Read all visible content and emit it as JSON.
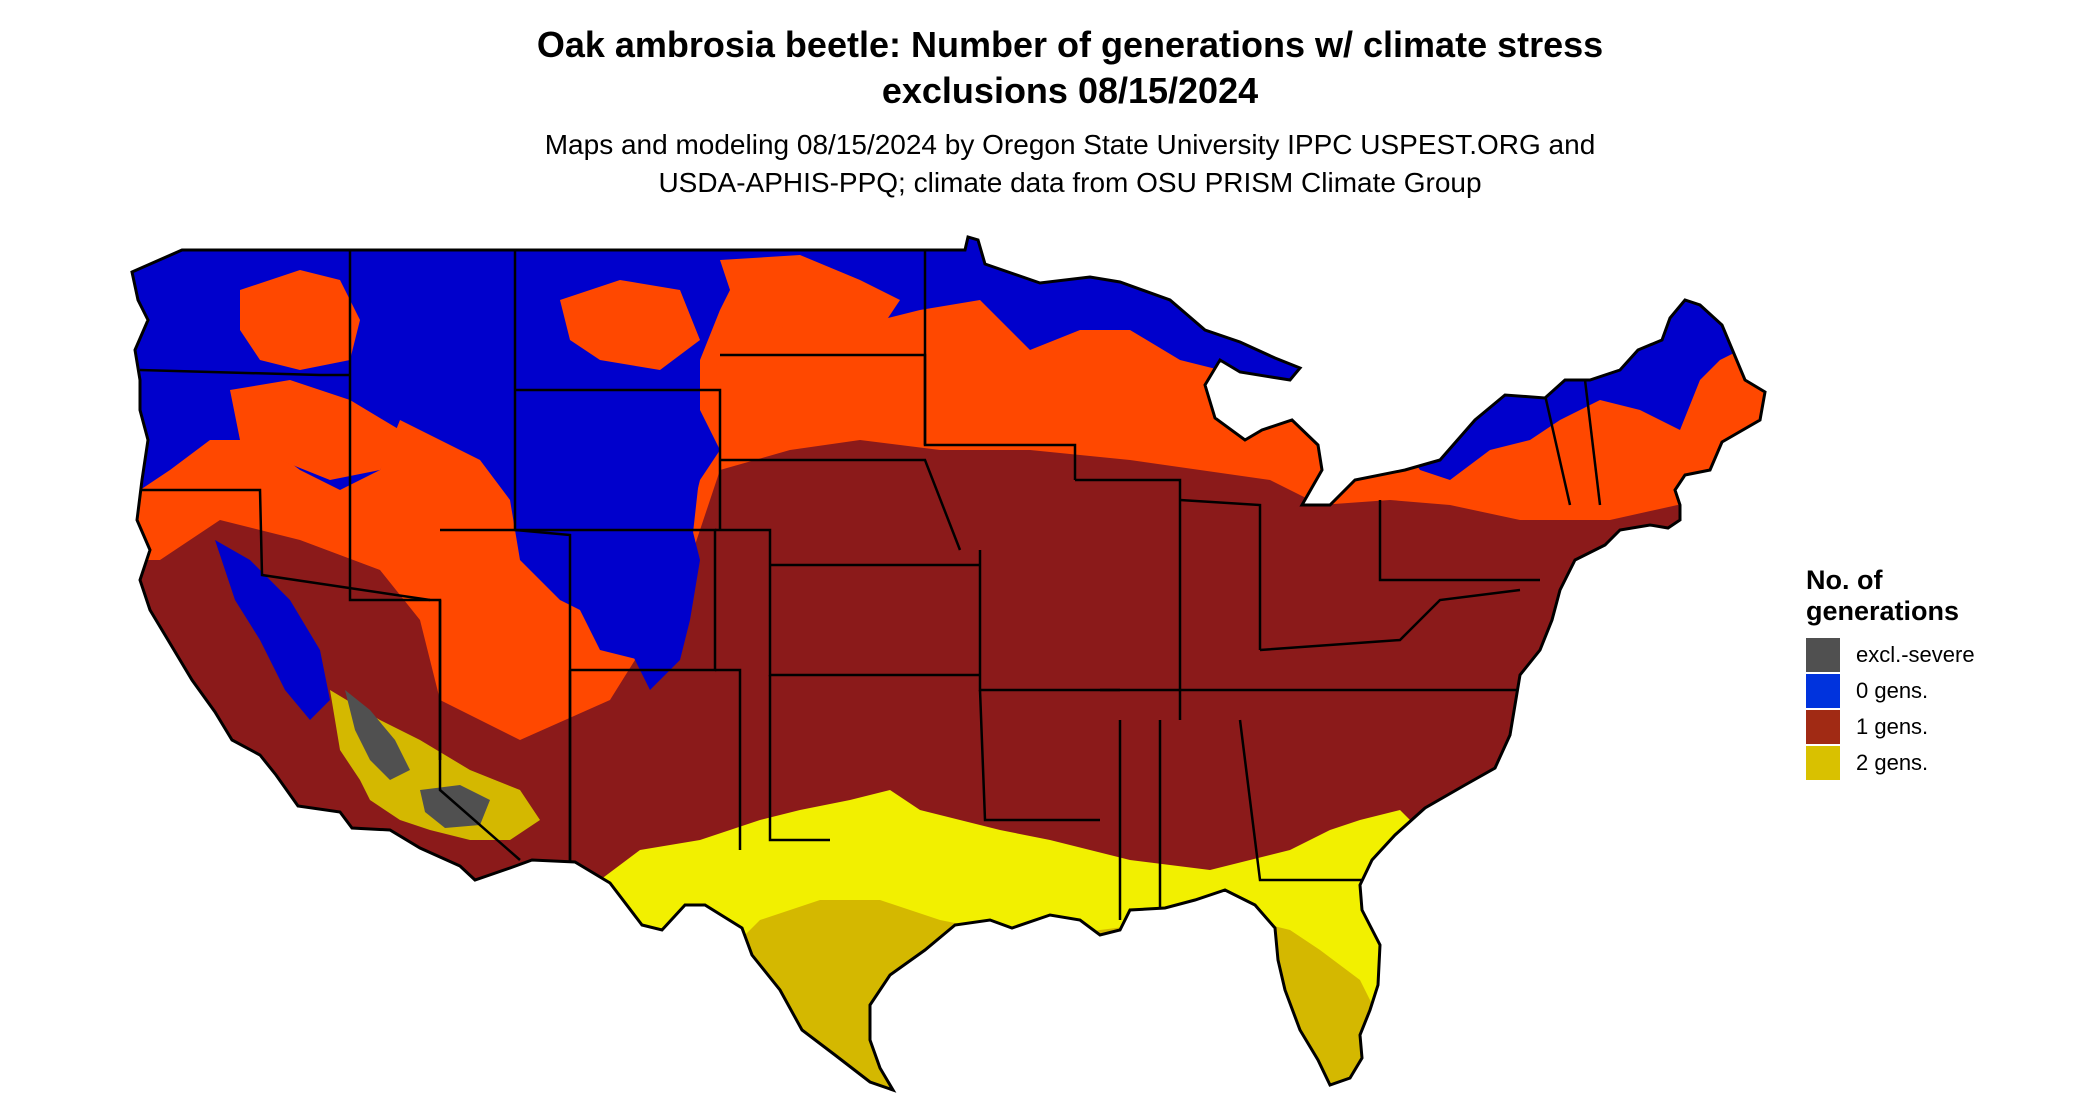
{
  "title": {
    "line1": "Oak ambrosia beetle: Number of generations w/ climate stress",
    "line2": "exclusions 08/15/2024"
  },
  "subtitle": {
    "line1": "Maps and modeling 08/15/2024 by Oregon State University IPPC USPEST.ORG and",
    "line2": "USDA-APHIS-PPQ; climate data from OSU PRISM Climate Group"
  },
  "legend": {
    "title_line1": "No. of",
    "title_line2": "generations",
    "items": [
      {
        "label": "excl.-severe",
        "color": "#505050"
      },
      {
        "label": "0 gens.",
        "color": "#0033dd"
      },
      {
        "label": "1 gens.",
        "color": "#a12a14"
      },
      {
        "label": "2 gens.",
        "color": "#d9c100"
      }
    ]
  },
  "map_colors": {
    "zero_gens": "#0000cc",
    "transition": "#ff4800",
    "one_gen": "#8b1a1a",
    "two_gens": "#d4b800",
    "two_gens_bright": "#f2f000",
    "excluded": "#505050",
    "border": "#000000"
  }
}
